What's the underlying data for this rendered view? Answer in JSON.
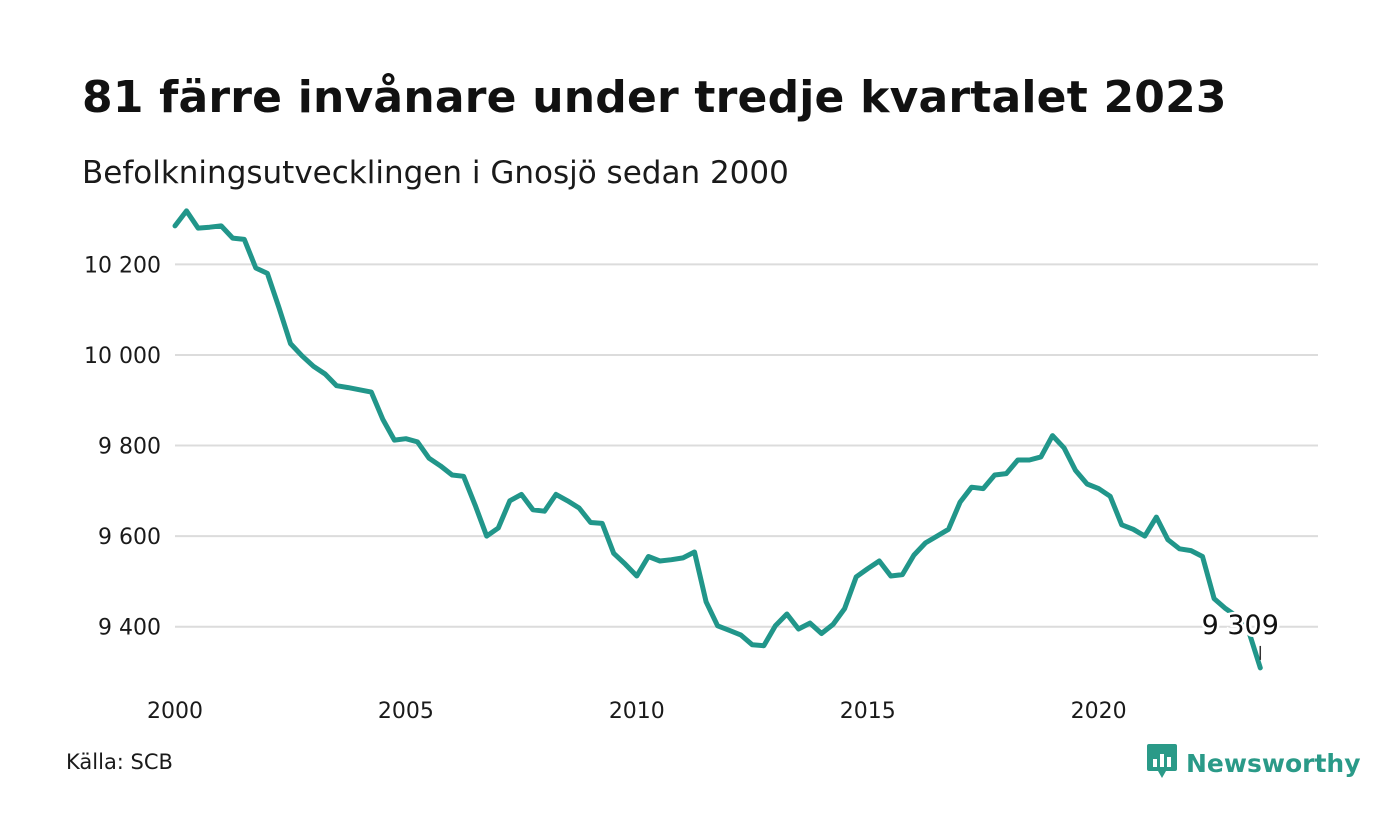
{
  "title": "81 färre invånare under tredje kvartalet 2023",
  "subtitle": "Befolkningsutvecklingen i Gnosjö sedan 2000",
  "source": "Källa: SCB",
  "brand": {
    "name": "Newsworthy",
    "icon": "newsworthy-logo-icon",
    "color": "#2a9a88"
  },
  "colors": {
    "line": "#21968a",
    "grid": "#dcdcdc",
    "text": "#1a1a1a"
  },
  "chart_data": {
    "type": "line",
    "title": "81 färre invånare under tredje kvartalet 2023",
    "subtitle": "Befolkningsutvecklingen i Gnosjö sedan 2000",
    "xlabel": "",
    "ylabel": "",
    "xlim": [
      2000,
      2024.75
    ],
    "ylim": [
      9300,
      10320
    ],
    "x_ticks": [
      2000,
      2005,
      2010,
      2015,
      2020
    ],
    "x_tick_labels": [
      "2000",
      "2005",
      "2010",
      "2015",
      "2020"
    ],
    "y_ticks": [
      9400,
      9600,
      9800,
      10000,
      10200
    ],
    "y_tick_labels": [
      "9 400",
      "9 600",
      "9 800",
      "10 000",
      "10 200"
    ],
    "grid": true,
    "legend": "none",
    "annotation": {
      "text": "9 309",
      "x": 2023.5,
      "y": 9309
    },
    "series": [
      {
        "color": "#21968a",
        "x": [
          2000,
          2000.25,
          2000.5,
          2000.75,
          2001,
          2001.25,
          2001.5,
          2001.75,
          2002,
          2002.25,
          2002.5,
          2002.75,
          2003,
          2003.25,
          2003.5,
          2003.75,
          2004,
          2004.25,
          2004.5,
          2004.75,
          2005,
          2005.25,
          2005.5,
          2005.75,
          2006,
          2006.25,
          2006.5,
          2006.75,
          2007,
          2007.25,
          2007.5,
          2007.75,
          2008,
          2008.25,
          2008.5,
          2008.75,
          2009,
          2009.25,
          2009.5,
          2009.75,
          2010,
          2010.25,
          2010.5,
          2010.75,
          2011,
          2011.25,
          2011.5,
          2011.75,
          2012,
          2012.25,
          2012.5,
          2012.75,
          2013,
          2013.25,
          2013.5,
          2013.75,
          2014,
          2014.25,
          2014.5,
          2014.75,
          2015,
          2015.25,
          2015.5,
          2015.75,
          2016,
          2016.25,
          2016.5,
          2016.75,
          2017,
          2017.25,
          2017.5,
          2017.75,
          2018,
          2018.25,
          2018.5,
          2018.75,
          2019,
          2019.25,
          2019.5,
          2019.75,
          2020,
          2020.25,
          2020.5,
          2020.75,
          2021,
          2021.25,
          2021.5,
          2021.75,
          2022,
          2022.25,
          2022.5,
          2022.75,
          2023,
          2023.25,
          2023.5
        ],
        "values": [
          10285,
          10318,
          10280,
          10282,
          10285,
          10258,
          10255,
          10192,
          10180,
          10105,
          10025,
          9998,
          9975,
          9958,
          9932,
          9928,
          9923,
          9918,
          9858,
          9812,
          9815,
          9808,
          9772,
          9755,
          9735,
          9732,
          9668,
          9600,
          9618,
          9678,
          9692,
          9658,
          9655,
          9692,
          9678,
          9662,
          9630,
          9628,
          9562,
          9538,
          9512,
          9555,
          9545,
          9548,
          9552,
          9565,
          9455,
          9402,
          9392,
          9382,
          9360,
          9358,
          9402,
          9428,
          9395,
          9408,
          9385,
          9405,
          9440,
          9510,
          9528,
          9545,
          9512,
          9515,
          9558,
          9585,
          9600,
          9615,
          9675,
          9708,
          9705,
          9735,
          9738,
          9768,
          9768,
          9775,
          9822,
          9795,
          9745,
          9715,
          9705,
          9688,
          9625,
          9615,
          9600,
          9642,
          9592,
          9572,
          9568,
          9555,
          9462,
          9440,
          9422,
          9390,
          9309
        ]
      }
    ]
  }
}
